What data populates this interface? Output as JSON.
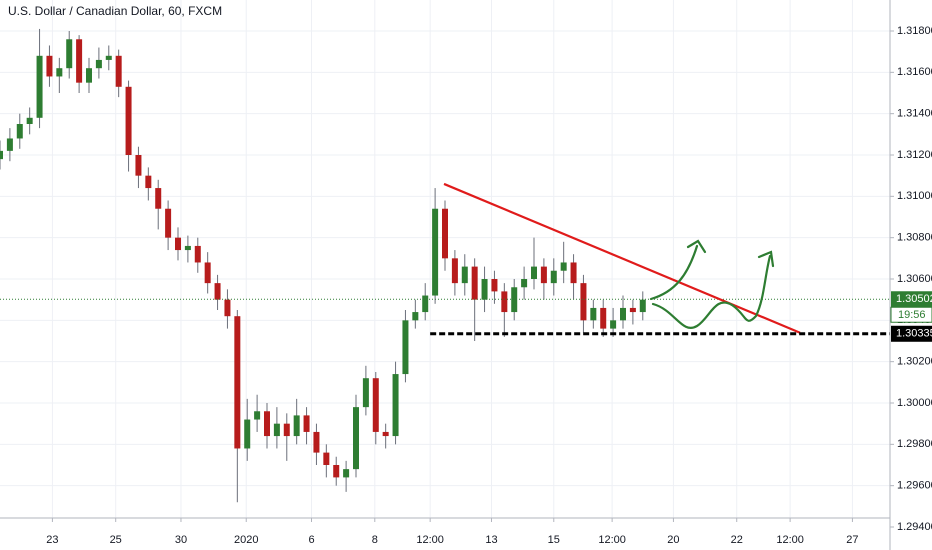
{
  "chart_data": {
    "type": "candlestick",
    "title": "U.S. Dollar / Canadian Dollar, 60, FXCM",
    "x": [
      0,
      1,
      2,
      3,
      4,
      5,
      6,
      7,
      8,
      9,
      10,
      11,
      12,
      13,
      14,
      15,
      16,
      17,
      18,
      19,
      20,
      21,
      22,
      23,
      24,
      25,
      26,
      27,
      28,
      29,
      30,
      31,
      32,
      33,
      34,
      35,
      36,
      37,
      38,
      39,
      40,
      41,
      42,
      43,
      44,
      45,
      46,
      47,
      48,
      49,
      50,
      51,
      52,
      53,
      54,
      55,
      56,
      57,
      58,
      59,
      60,
      61,
      62,
      63,
      64,
      65
    ],
    "open": [
      1.3118,
      1.3122,
      1.3128,
      1.3135,
      1.3138,
      1.3168,
      1.3158,
      1.3162,
      1.3176,
      1.3155,
      1.3162,
      1.3166,
      1.3168,
      1.3153,
      1.312,
      1.311,
      1.3104,
      1.3094,
      1.308,
      1.3074,
      1.3076,
      1.3068,
      1.3058,
      1.305,
      1.3042,
      1.2978,
      1.2992,
      1.2996,
      1.2984,
      1.299,
      1.2984,
      1.2994,
      1.2986,
      1.2976,
      1.297,
      1.2964,
      1.2968,
      1.2998,
      1.3012,
      1.2986,
      1.2984,
      1.3014,
      1.304,
      1.3044,
      1.3052,
      1.3094,
      1.307,
      1.3058,
      1.3066,
      1.305,
      1.306,
      1.3054,
      1.3044,
      1.3056,
      1.306,
      1.3066,
      1.3058,
      1.3064,
      1.3068,
      1.3058,
      1.304,
      1.3046,
      1.3036,
      1.304,
      1.3046,
      1.3044
    ],
    "high": [
      1.3127,
      1.3133,
      1.314,
      1.3143,
      1.3181,
      1.3173,
      1.3167,
      1.318,
      1.3178,
      1.3167,
      1.3172,
      1.3173,
      1.3171,
      1.3156,
      1.3124,
      1.3114,
      1.3108,
      1.3098,
      1.3085,
      1.3081,
      1.308,
      1.3073,
      1.3062,
      1.3055,
      1.3045,
      1.3002,
      1.3004,
      1.3,
      1.2998,
      1.2995,
      1.3002,
      1.2998,
      1.299,
      1.298,
      1.2974,
      1.2972,
      1.3004,
      1.3018,
      1.3015,
      1.299,
      1.302,
      1.3045,
      1.305,
      1.3058,
      1.3104,
      1.3098,
      1.3074,
      1.3072,
      1.307,
      1.3066,
      1.3064,
      1.3058,
      1.306,
      1.3066,
      1.308,
      1.307,
      1.307,
      1.3078,
      1.3072,
      1.3062,
      1.305,
      1.305,
      1.3046,
      1.3052,
      1.305,
      1.3054
    ],
    "low": [
      1.3113,
      1.3117,
      1.3123,
      1.313,
      1.3133,
      1.3153,
      1.315,
      1.3157,
      1.315,
      1.315,
      1.3157,
      1.3161,
      1.3148,
      1.3112,
      1.3104,
      1.3098,
      1.3084,
      1.3074,
      1.3069,
      1.3068,
      1.3063,
      1.3053,
      1.3045,
      1.3036,
      1.2952,
      1.2972,
      1.2986,
      1.2978,
      1.2978,
      1.2972,
      1.298,
      1.298,
      1.297,
      1.2964,
      1.296,
      1.2957,
      1.2964,
      1.2994,
      1.298,
      1.2978,
      1.298,
      1.301,
      1.3036,
      1.304,
      1.3048,
      1.3064,
      1.3052,
      1.3052,
      1.303,
      1.3044,
      1.3048,
      1.3032,
      1.304,
      1.305,
      1.3055,
      1.305,
      1.3052,
      1.3058,
      1.305,
      1.3034,
      1.3036,
      1.3032,
      1.3032,
      1.3036,
      1.3038,
      1.304
    ],
    "close": [
      1.3122,
      1.3128,
      1.3135,
      1.3138,
      1.3168,
      1.3158,
      1.3162,
      1.3176,
      1.3155,
      1.3162,
      1.3166,
      1.3168,
      1.3153,
      1.312,
      1.311,
      1.3104,
      1.3094,
      1.308,
      1.3074,
      1.3076,
      1.3068,
      1.3058,
      1.305,
      1.3042,
      1.2978,
      1.2992,
      1.2996,
      1.2984,
      1.299,
      1.2984,
      1.2994,
      1.2986,
      1.2976,
      1.297,
      1.2964,
      1.2968,
      1.2998,
      1.3012,
      1.2986,
      1.2984,
      1.3014,
      1.304,
      1.3044,
      1.3052,
      1.3094,
      1.307,
      1.3058,
      1.3066,
      1.305,
      1.306,
      1.3054,
      1.3044,
      1.3056,
      1.306,
      1.3066,
      1.3058,
      1.3064,
      1.3068,
      1.3058,
      1.304,
      1.3046,
      1.3036,
      1.304,
      1.3046,
      1.3044,
      1.305
    ],
    "up_color": "#2e7d32",
    "down_color": "#b71c1c",
    "wick_color": "#6b6f7a",
    "xlim": [
      0,
      90
    ],
    "ylim": [
      1.294,
      1.3195
    ],
    "xticks": [
      {
        "value": 5.3,
        "label": "23"
      },
      {
        "value": 11.7,
        "label": "25"
      },
      {
        "value": 18.3,
        "label": "30"
      },
      {
        "value": 24.9,
        "label": "2020"
      },
      {
        "value": 31.5,
        "label": "6"
      },
      {
        "value": 37.9,
        "label": "8"
      },
      {
        "value": 43.5,
        "label": "12:00"
      },
      {
        "value": 49.7,
        "label": "13"
      },
      {
        "value": 56,
        "label": "15"
      },
      {
        "value": 61.9,
        "label": "12:00"
      },
      {
        "value": 68.1,
        "label": "20"
      },
      {
        "value": 74.5,
        "label": "22"
      },
      {
        "value": 79.9,
        "label": "12:00"
      },
      {
        "value": 86.2,
        "label": "27"
      }
    ],
    "yticks": [
      {
        "value": 1.294,
        "label": "1.29400"
      },
      {
        "value": 1.296,
        "label": "1.29600"
      },
      {
        "value": 1.298,
        "label": "1.29800"
      },
      {
        "value": 1.3,
        "label": "1.30000"
      },
      {
        "value": 1.302,
        "label": "1.30200"
      },
      {
        "value": 1.304,
        "label": "1.30400"
      },
      {
        "value": 1.306,
        "label": "1.30600"
      },
      {
        "value": 1.308,
        "label": "1.30800"
      },
      {
        "value": 1.31,
        "label": "1.31000"
      },
      {
        "value": 1.312,
        "label": "1.31200"
      },
      {
        "value": 1.314,
        "label": "1.31400"
      },
      {
        "value": 1.316,
        "label": "1.31600"
      },
      {
        "value": 1.318,
        "label": "1.31800"
      }
    ],
    "grid": true,
    "last_price": 1.30502,
    "last_price_color": "#2e7d32",
    "countdown": "19:56",
    "support": {
      "value": 1.30335,
      "x_start": 43.5,
      "color": "#000000"
    },
    "trendline": {
      "x": [
        44.9,
        80.9
      ],
      "y": [
        1.3106,
        1.3034
      ],
      "color": "#e01b1b"
    }
  }
}
